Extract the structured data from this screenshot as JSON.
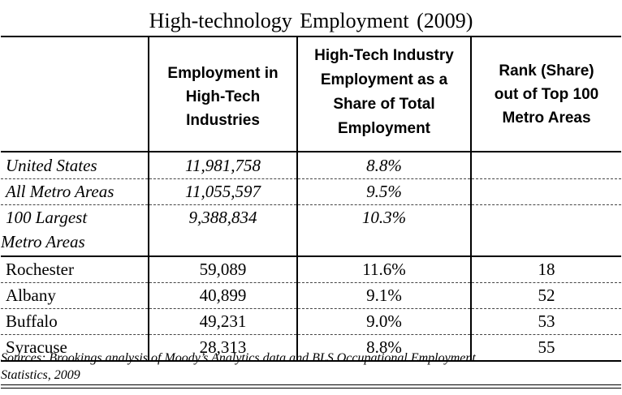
{
  "title": "High-technology  Employment  (2009)",
  "headers": {
    "employment": [
      "Employment in",
      "High-Tech",
      "Industries"
    ],
    "share": [
      "High-Tech Industry",
      "Employment as a",
      "Share of Total",
      "Employment"
    ],
    "rank": [
      "Rank (Share)",
      "out of Top 100",
      "Metro Areas"
    ]
  },
  "aggregates": [
    {
      "name": "United States",
      "employment": "11,981,758",
      "share": "8.8%",
      "rank": ""
    },
    {
      "name": "All Metro Areas",
      "employment": "11,055,597",
      "share": "9.5%",
      "rank": ""
    },
    {
      "name_lines": [
        "100 Largest",
        "Metro Areas"
      ],
      "employment": "9,388,834",
      "share": "10.3%",
      "rank": ""
    }
  ],
  "metros": [
    {
      "name": "Rochester",
      "employment": "59,089",
      "share": "11.6%",
      "rank": "18"
    },
    {
      "name": "Albany",
      "employment": "40,899",
      "share": "9.1%",
      "rank": "52"
    },
    {
      "name": "Buffalo",
      "employment": "49,231",
      "share": "9.0%",
      "rank": "53"
    },
    {
      "name": "Syracuse",
      "employment": "28,313",
      "share": "8.8%",
      "rank": "55"
    }
  ],
  "source_lines": [
    "Sources: Brookings analysis of Moody’s Analytics data and BLS Occupational Employment",
    "Statistics, 2009"
  ]
}
